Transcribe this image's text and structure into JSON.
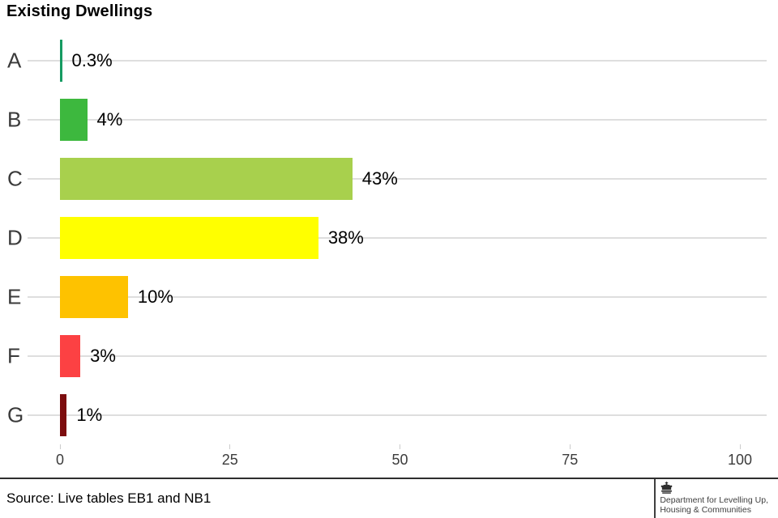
{
  "title": "Existing Dwellings",
  "chart_data": {
    "type": "bar",
    "orientation": "horizontal",
    "title": "Existing Dwellings",
    "categories": [
      "A",
      "B",
      "C",
      "D",
      "E",
      "F",
      "G"
    ],
    "values": [
      0.3,
      4,
      43,
      38,
      10,
      3,
      1
    ],
    "value_labels": [
      "0.3%",
      "4%",
      "43%",
      "38%",
      "10%",
      "3%",
      "1%"
    ],
    "bar_colors": [
      "#169b62",
      "#3db83e",
      "#a8d04d",
      "#ffff00",
      "#fec200",
      "#fc4143",
      "#7c0d0e"
    ],
    "xlabel": "",
    "ylabel": "",
    "xlim": [
      0,
      100
    ],
    "x_ticks": [
      0,
      25,
      50,
      75,
      100
    ],
    "x_tick_labels": [
      "0",
      "25",
      "50",
      "75",
      "100"
    ],
    "grid": "horizontal row gridlines",
    "legend_position": "none"
  },
  "footer": {
    "source": "Source: Live tables EB1 and NB1",
    "logo": {
      "icon": "royal-crest",
      "department_line1": "Department for Levelling Up,",
      "department_line2": "Housing & Communities"
    }
  },
  "colors": {
    "gridline": "#dedede",
    "axis_text": "#3c3c3c",
    "divider": "#2e2e2e",
    "logo_text": "#404040"
  }
}
